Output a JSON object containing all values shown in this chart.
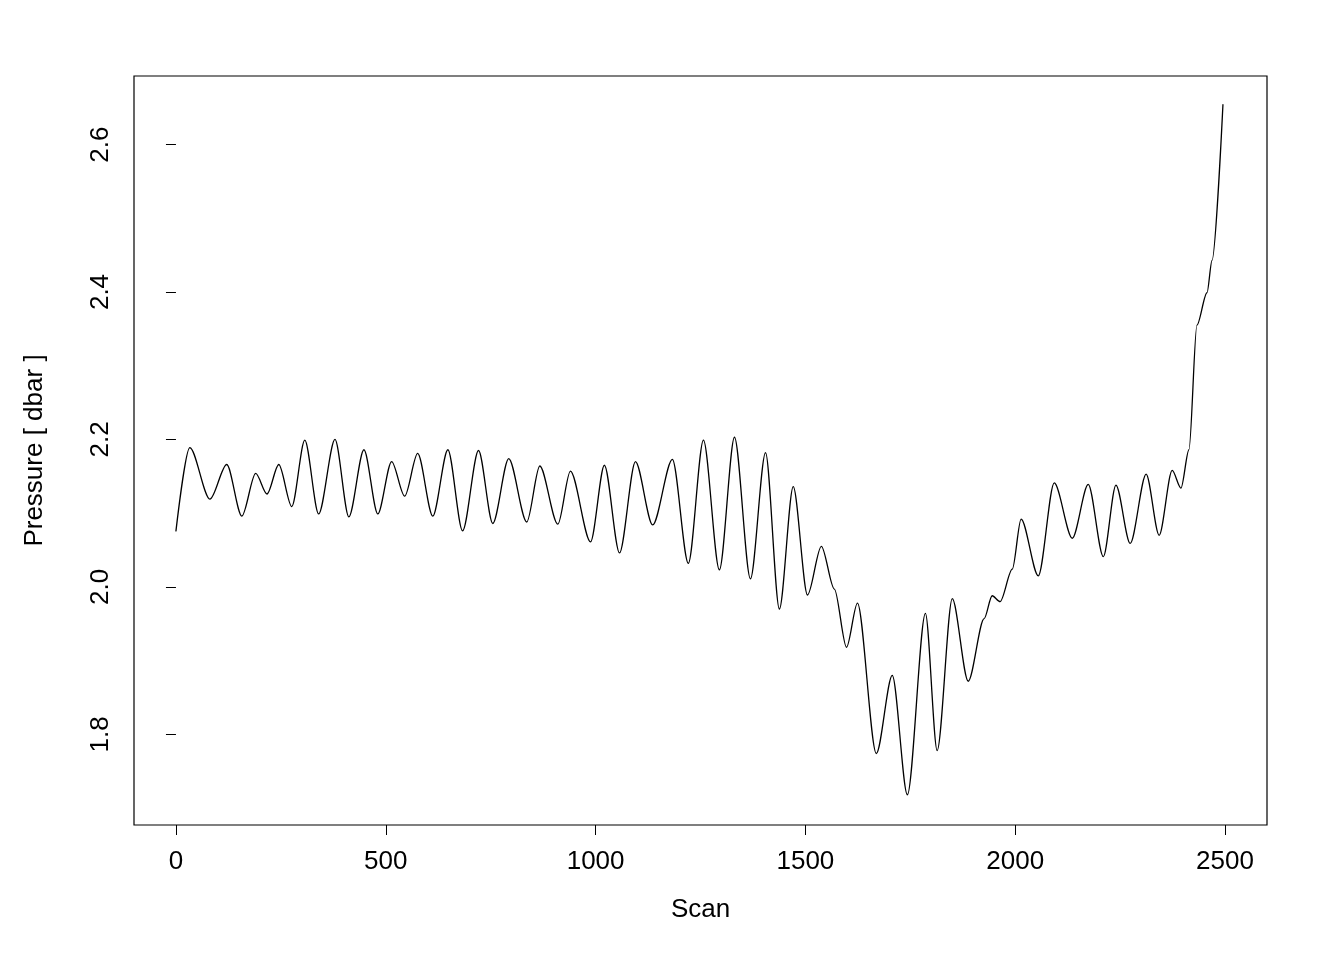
{
  "chart_data": {
    "type": "line",
    "xlabel": "Scan",
    "ylabel": "Pressure [ dbar ]",
    "xlim": [
      -100,
      2600
    ],
    "xticks": [
      0,
      500,
      1000,
      1500,
      2000,
      2500
    ],
    "ylim": [
      1.677,
      2.693
    ],
    "yticks": [
      1.8,
      {
        "value": 2.0,
        "label": "2.0"
      },
      2.2,
      2.4,
      2.6
    ],
    "line_style": "solid",
    "grid": false,
    "series": [
      {
        "color": "#000000",
        "x": [
          0,
          33,
          81,
          121,
          157,
          190,
          217,
          245,
          276,
          307,
          340,
          379,
          412,
          448,
          481,
          514,
          545,
          576,
          612,
          648,
          683,
          721,
          755,
          793,
          836,
          867,
          910,
          940,
          988,
          1021,
          1057,
          1095,
          1136,
          1183,
          1221,
          1257,
          1295,
          1331,
          1369,
          1405,
          1438,
          1471,
          1505,
          1538,
          1569,
          1598,
          1624,
          1669,
          1707,
          1743,
          1786,
          1814,
          1850,
          1888,
          1926,
          1945,
          1964,
          1993,
          2014,
          2055,
          2093,
          2136,
          2174,
          2210,
          2240,
          2274,
          2312,
          2343,
          2374,
          2395,
          2414,
          2433,
          2457,
          2469,
          2495
        ],
        "values": [
          2.076,
          2.189,
          2.119,
          2.166,
          2.096,
          2.154,
          2.126,
          2.166,
          2.109,
          2.199,
          2.099,
          2.2,
          2.095,
          2.186,
          2.099,
          2.17,
          2.123,
          2.181,
          2.096,
          2.186,
          2.076,
          2.185,
          2.086,
          2.174,
          2.088,
          2.164,
          2.085,
          2.157,
          2.061,
          2.165,
          2.046,
          2.17,
          2.084,
          2.173,
          2.032,
          2.199,
          2.023,
          2.203,
          2.011,
          2.182,
          1.97,
          2.136,
          1.989,
          2.055,
          1.997,
          1.918,
          1.978,
          1.774,
          1.88,
          1.718,
          1.964,
          1.778,
          1.984,
          1.872,
          1.957,
          1.988,
          1.98,
          2.024,
          2.092,
          2.015,
          2.141,
          2.066,
          2.139,
          2.041,
          2.138,
          2.059,
          2.153,
          2.07,
          2.158,
          2.134,
          2.186,
          2.355,
          2.399,
          2.443,
          2.654
        ]
      }
    ]
  }
}
